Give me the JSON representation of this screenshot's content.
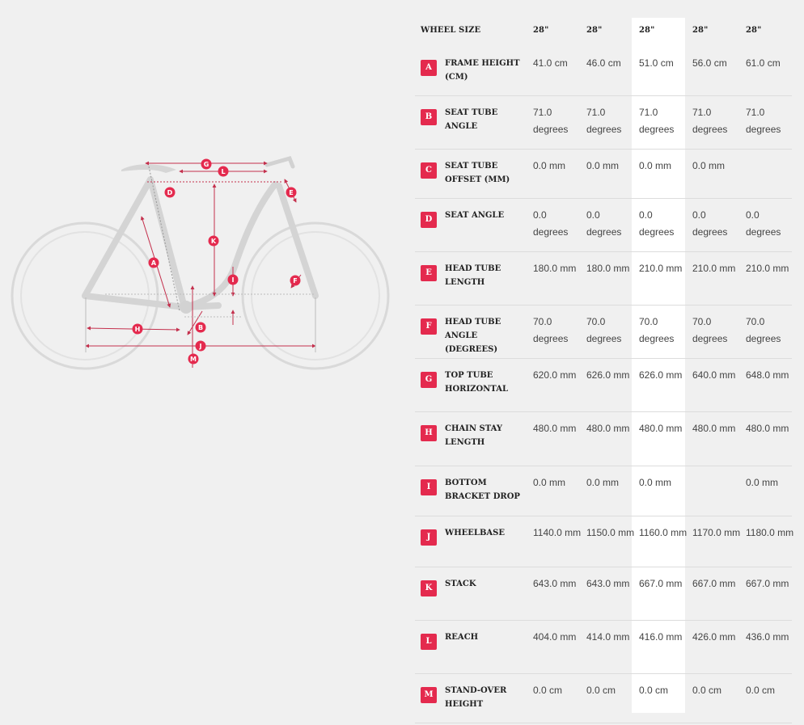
{
  "diagram": {
    "labels": [
      "G",
      "L",
      "D",
      "E",
      "K",
      "A",
      "I",
      "F",
      "H",
      "B",
      "J",
      "M"
    ]
  },
  "table": {
    "header_label": "WHEEL SIZE",
    "sizes": [
      "28\"",
      "28\"",
      "28\"",
      "28\"",
      "28\""
    ],
    "rows": [
      {
        "letter": "A",
        "label": "FRAME HEIGHT (CM)",
        "values": [
          "41.0 cm",
          "46.0 cm",
          "51.0 cm",
          "56.0 cm",
          "61.0 cm"
        ]
      },
      {
        "letter": "B",
        "label": "SEAT TUBE ANGLE",
        "values": [
          "71.0 degrees",
          "71.0 degrees",
          "71.0 degrees",
          "71.0 degrees",
          "71.0 degrees"
        ]
      },
      {
        "letter": "C",
        "label": "SEAT TUBE OFFSET (MM)",
        "values": [
          "0.0 mm",
          "0.0 mm",
          "0.0 mm",
          "0.0 mm",
          ""
        ]
      },
      {
        "letter": "D",
        "label": "SEAT ANGLE",
        "values": [
          "0.0 degrees",
          "0.0 degrees",
          "0.0 degrees",
          "0.0 degrees",
          "0.0 degrees"
        ]
      },
      {
        "letter": "E",
        "label": "HEAD TUBE LENGTH",
        "values": [
          "180.0 mm",
          "180.0 mm",
          "210.0 mm",
          "210.0 mm",
          "210.0 mm"
        ]
      },
      {
        "letter": "F",
        "label": "HEAD TUBE ANGLE (DEGREES)",
        "values": [
          "70.0 degrees",
          "70.0 degrees",
          "70.0 degrees",
          "70.0 degrees",
          "70.0 degrees"
        ]
      },
      {
        "letter": "G",
        "label": "TOP TUBE HORIZONTAL",
        "values": [
          "620.0 mm",
          "626.0 mm",
          "626.0 mm",
          "640.0 mm",
          "648.0 mm"
        ]
      },
      {
        "letter": "H",
        "label": "CHAIN STAY LENGTH",
        "values": [
          "480.0 mm",
          "480.0 mm",
          "480.0 mm",
          "480.0 mm",
          "480.0 mm"
        ]
      },
      {
        "letter": "I",
        "label": "BOTTOM BRACKET DROP",
        "values": [
          "0.0 mm",
          "0.0 mm",
          "0.0 mm",
          "",
          "0.0 mm"
        ]
      },
      {
        "letter": "J",
        "label": "WHEELBASE",
        "values": [
          "1140.0 mm",
          "1150.0 mm",
          "1160.0 mm",
          "1170.0 mm",
          "1180.0 mm"
        ]
      },
      {
        "letter": "K",
        "label": "STACK",
        "values": [
          "643.0 mm",
          "643.0 mm",
          "667.0 mm",
          "667.0 mm",
          "667.0 mm"
        ]
      },
      {
        "letter": "L",
        "label": "REACH",
        "values": [
          "404.0 mm",
          "414.0 mm",
          "416.0 mm",
          "426.0 mm",
          "436.0 mm"
        ]
      },
      {
        "letter": "M",
        "label": "STAND-OVER HEIGHT",
        "values": [
          "0.0 cm",
          "0.0 cm",
          "0.0 cm",
          "0.0 cm",
          "0.0 cm"
        ]
      }
    ]
  },
  "colors": {
    "accent": "#e42a4e",
    "background": "#f0f0f0",
    "highlight_column": "#ffffff"
  }
}
